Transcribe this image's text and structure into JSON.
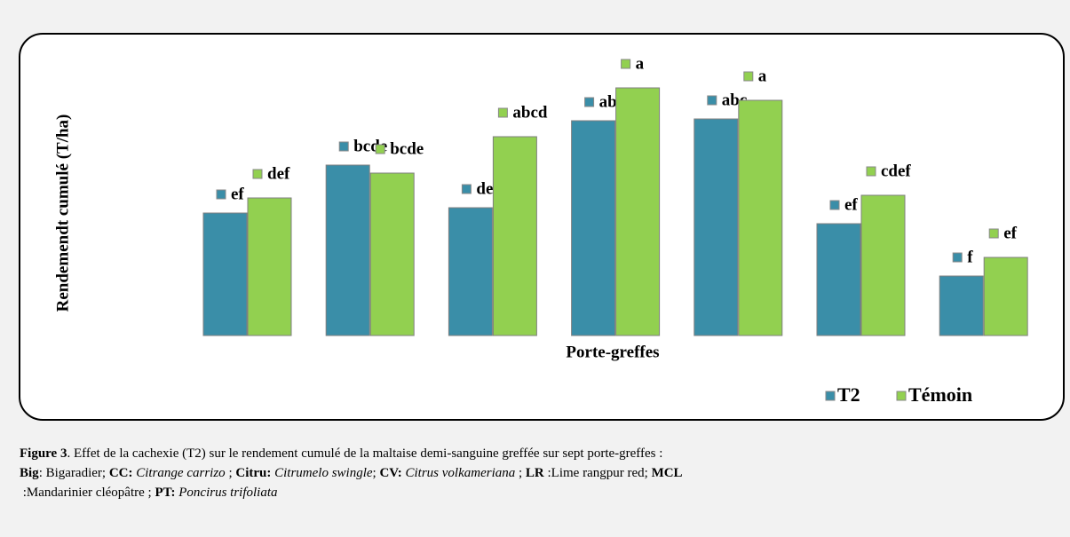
{
  "chart_data": {
    "type": "bar",
    "y_axis_label": "Rendemendt cumulé (T/ha)",
    "x_axis_label": "Porte-greffes",
    "categories": [
      null,
      null,
      null,
      null,
      null,
      null,
      null
    ],
    "ylim": [
      0,
      300
    ],
    "legend": "bottom-right",
    "series": [
      {
        "name": "T2",
        "color": "#3a8ea8",
        "values": [
          138,
          192,
          144,
          242,
          244,
          126,
          67
        ],
        "letters": [
          "ef",
          "bcde",
          "def",
          "abc",
          "abc",
          "ef",
          "f"
        ]
      },
      {
        "name": "Témoin",
        "color": "#92d050",
        "values": [
          155,
          183,
          224,
          279,
          265,
          158,
          88
        ],
        "letters": [
          "def",
          "bcde",
          "abcd",
          "a",
          "a",
          "cdef",
          "ef"
        ]
      }
    ]
  },
  "caption": [
    [
      {
        "text": "Figure 3",
        "style": "b"
      },
      {
        "text": ". Effet de la cachexie (T2) sur le rendement cumulé de la maltaise demi-sanguine greffée sur sept porte-greffes :"
      }
    ],
    [
      {
        "text": "Big",
        "style": "b"
      },
      {
        "text": ": Bigaradier; "
      },
      {
        "text": "CC:",
        "style": "b"
      },
      {
        "text": " "
      },
      {
        "text": "Citrange carrizo",
        "style": "i"
      },
      {
        "text": " ; "
      },
      {
        "text": "Citru:",
        "style": "b"
      },
      {
        "text": " "
      },
      {
        "text": "Citrumelo swingle",
        "style": "i"
      },
      {
        "text": "; "
      },
      {
        "text": "CV:",
        "style": "b"
      },
      {
        "text": " "
      },
      {
        "text": "Citrus volkameriana",
        "style": "i"
      },
      {
        "text": " ; "
      },
      {
        "text": "LR",
        "style": "b"
      },
      {
        "text": " :Lime rangpur red; "
      },
      {
        "text": "MCL",
        "style": "b"
      }
    ],
    [
      {
        "text": " :Mandarinier cléopâtre ; "
      },
      {
        "text": "PT:",
        "style": "b"
      },
      {
        "text": " "
      },
      {
        "text": "Poncirus trifoliata",
        "style": "i"
      }
    ]
  ]
}
